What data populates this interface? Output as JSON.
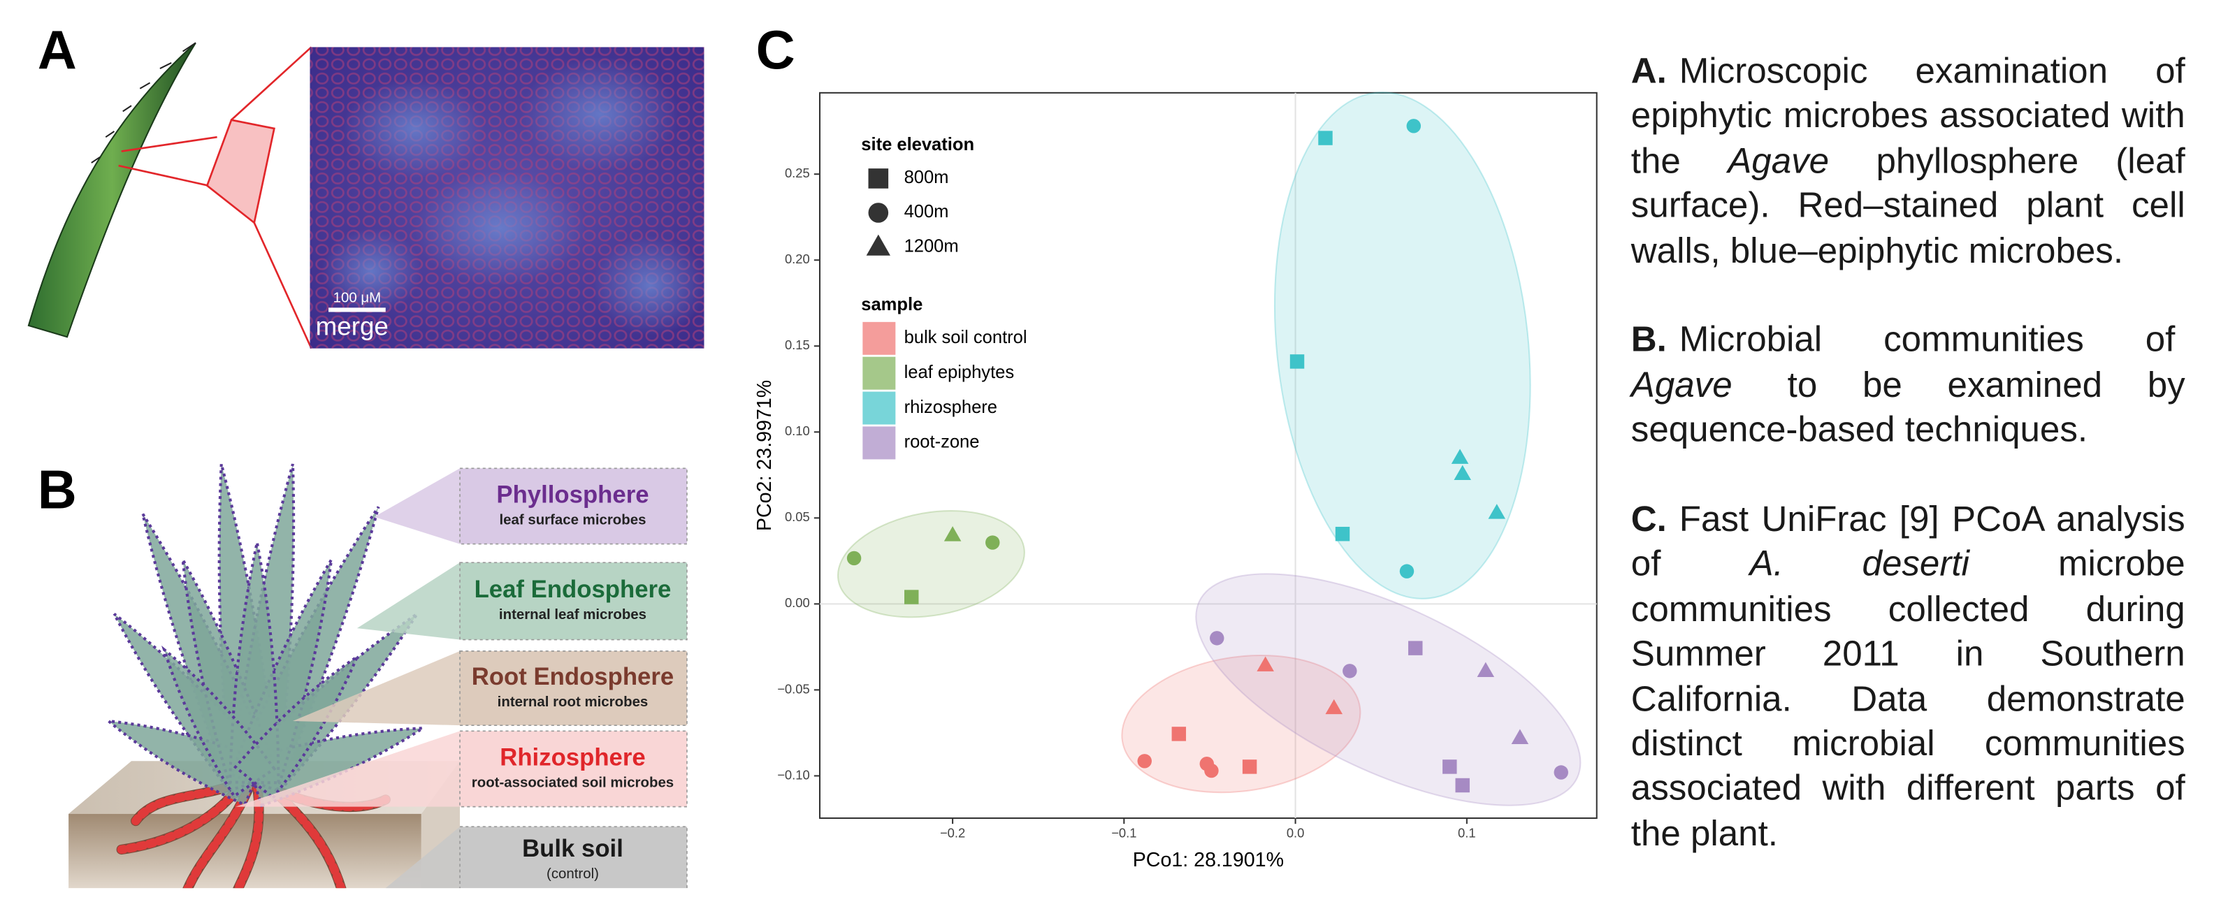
{
  "panel_a": {
    "letter": "A",
    "scale_bar": "100 μM",
    "channel": "merge"
  },
  "panel_b": {
    "letter": "B",
    "compartments": [
      {
        "title": "Phyllosphere",
        "subtitle": "leaf surface microbes",
        "color": "#6b2d8e",
        "fill": "#d9c9e5"
      },
      {
        "title": "Leaf Endosphere",
        "subtitle": "internal leaf microbes",
        "color": "#1b6b3a",
        "fill": "#b7d4c4"
      },
      {
        "title": "Root Endosphere",
        "subtitle": "internal root microbes",
        "color": "#7a3b2e",
        "fill": "#ddcbbc"
      },
      {
        "title": "Rhizosphere",
        "subtitle": "root-associated soil microbes",
        "color": "#e0262a",
        "fill": "#f9d6d6"
      },
      {
        "title": "Bulk soil",
        "subtitle": "(control)",
        "color": "#1a1a1a",
        "fill": "#c8c8c8"
      }
    ]
  },
  "panel_c_letter": "C",
  "chart_data": {
    "type": "scatter",
    "x_label": "PCo1: 28.1901%",
    "y_label": "PCo2: 23.9971%",
    "xlim": [
      -0.2775,
      0.1758
    ],
    "ylim": [
      -0.1246,
      0.2973
    ],
    "xticks": [
      {
        "value": -0.2,
        "label": "−0.2"
      },
      {
        "value": -0.1,
        "label": "−0.1"
      },
      {
        "value": 0,
        "label": "0.0"
      },
      {
        "value": 0.1,
        "label": "0.1"
      }
    ],
    "yticks": [
      {
        "value": -0.1,
        "label": "−0.10"
      },
      {
        "value": -0.05,
        "label": "−0.05"
      },
      {
        "value": 0,
        "label": "0.00"
      },
      {
        "value": 0.05,
        "label": "0.05"
      },
      {
        "value": 0.1,
        "label": "0.10"
      },
      {
        "value": 0.15,
        "label": "0.15"
      },
      {
        "value": 0.2,
        "label": "0.20"
      },
      {
        "value": 0.25,
        "label": "0.25"
      }
    ],
    "zero_lines": true,
    "legend_position": "top-left",
    "shape_legend": {
      "title": "site elevation",
      "items": [
        {
          "label": "800m",
          "shape": "square"
        },
        {
          "label": "400m",
          "shape": "circle"
        },
        {
          "label": "1200m",
          "shape": "triangle"
        }
      ]
    },
    "legend_title": "sample",
    "series": [
      {
        "name": "bulk soil control",
        "color": "#ef7470",
        "x": [
          -0.0175,
          0.0225,
          -0.068,
          -0.088,
          -0.0517,
          -0.049,
          -0.0267
        ],
        "y": [
          -0.0357,
          -0.0606,
          -0.0756,
          -0.0914,
          -0.093,
          -0.097,
          -0.0947
        ],
        "elevation": [
          "1200m",
          "1200m",
          "800m",
          "400m",
          "400m",
          "400m",
          "800m"
        ]
      },
      {
        "name": "leaf epiphytes",
        "color": "#7fb058",
        "x": [
          -0.2575,
          -0.2,
          -0.1767,
          -0.224
        ],
        "y": [
          0.0266,
          0.04,
          0.0357,
          0.004
        ],
        "elevation": [
          "400m",
          "1200m",
          "400m",
          "800m"
        ]
      },
      {
        "name": "rhizosphere",
        "color": "#3ec3c9",
        "x": [
          0.0175,
          0.069,
          0.001,
          0.096,
          0.0975,
          0.1175,
          0.0275,
          0.065
        ],
        "y": [
          0.271,
          0.278,
          0.141,
          0.085,
          0.0756,
          0.053,
          0.0407,
          0.019
        ],
        "elevation": [
          "800m",
          "400m",
          "800m",
          "1200m",
          "1200m",
          "1200m",
          "800m",
          "400m"
        ]
      },
      {
        "name": "root-zone",
        "color": "#a68ac3",
        "x": [
          -0.0458,
          0.0317,
          0.07,
          0.111,
          0.131,
          0.09,
          0.0975,
          0.155
        ],
        "y": [
          -0.0199,
          -0.039,
          -0.0257,
          -0.039,
          -0.078,
          -0.0947,
          -0.1055,
          -0.098
        ],
        "elevation": [
          "400m",
          "400m",
          "800m",
          "1200m",
          "1200m",
          "800m",
          "800m",
          "400m"
        ]
      }
    ]
  },
  "captions": [
    {
      "label": "A.",
      "parts": [
        {
          "text": "Microscopic examination of epiphytic microbes associated with the",
          "italic": false
        },
        {
          "text": "Agave",
          "italic": true
        },
        {
          "text": "phyllosphere (leaf surface). Red–stained plant cell walls, blue–epiphytic microbes.",
          "italic": false
        }
      ]
    },
    {
      "label": "B.",
      "parts": [
        {
          "text": "Microbial communities of",
          "italic": false
        },
        {
          "text": "Agave",
          "italic": true
        },
        {
          "text": "to be examined by sequence-based techniques.",
          "italic": false
        }
      ]
    },
    {
      "label": "C.",
      "parts": [
        {
          "text": "Fast UniFrac [9] PCoA analysis of",
          "italic": false
        },
        {
          "text": "A. deserti",
          "italic": true
        },
        {
          "text": "microbe communities collected during Summer 2011 in Southern California. Data demonstrate distinct microbial communities associated with different parts of the plant.",
          "italic": false
        }
      ]
    }
  ]
}
